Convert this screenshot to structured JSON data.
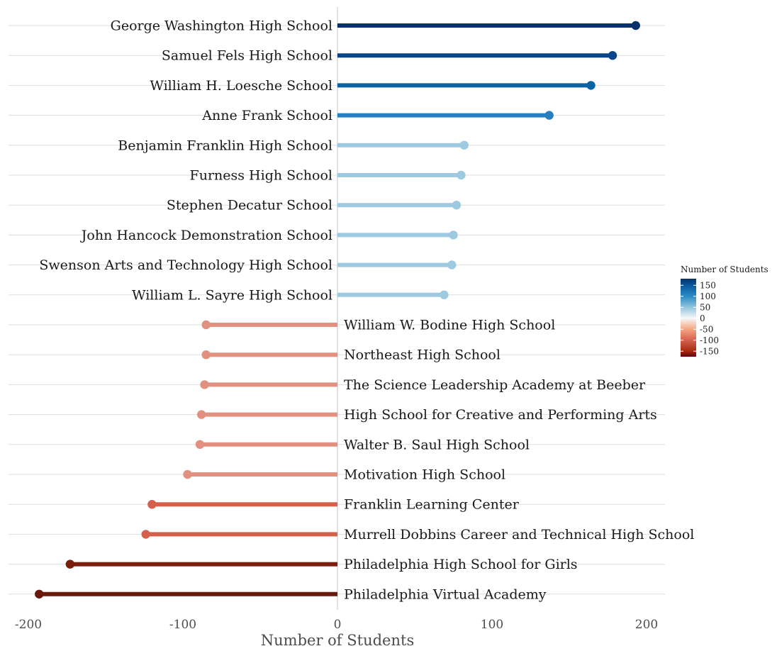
{
  "chart_data": {
    "type": "lollipop",
    "xlabel": "Number of Students",
    "xlim": [
      -205,
      212
    ],
    "x_ticks": [
      -200,
      -100,
      0,
      100,
      200
    ],
    "x_tick_labels": [
      "-200",
      "-100",
      "0",
      "100",
      "200"
    ],
    "grid": true,
    "legend": {
      "title": "Number of Students",
      "position": "right",
      "tick_labels": [
        "150",
        "100",
        "50",
        "0",
        "-50",
        "-100",
        "-150"
      ],
      "tick_values": [
        150,
        100,
        50,
        0,
        -50,
        -100,
        -150
      ],
      "range": [
        -175,
        180
      ]
    },
    "color_stops": [
      {
        "value": -195,
        "color": "#67000d"
      },
      {
        "value": -150,
        "color": "#a52a0f"
      },
      {
        "value": -100,
        "color": "#d6604d"
      },
      {
        "value": -50,
        "color": "#f4a582"
      },
      {
        "value": 0,
        "color": "#f7f7f7"
      },
      {
        "value": 50,
        "color": "#92c5de"
      },
      {
        "value": 100,
        "color": "#2b8cc4"
      },
      {
        "value": 150,
        "color": "#08589e"
      },
      {
        "value": 195,
        "color": "#08306b"
      }
    ],
    "categories": [
      "George Washington High School",
      "Samuel Fels High School",
      "William H. Loesche School",
      "Anne Frank School",
      "Benjamin Franklin High School",
      "Furness High School",
      "Stephen Decatur School",
      "John Hancock Demonstration School",
      "Swenson Arts and Technology High School",
      "William L. Sayre High School",
      "William W. Bodine High School",
      "Northeast High School",
      "The Science Leadership Academy at Beeber",
      "High School for Creative and Performing Arts",
      "Walter B. Saul High School",
      "Motivation High School",
      "Franklin Learning Center",
      "Murrell Dobbins Career and Technical High School",
      "Philadelphia High School for Girls",
      "Philadelphia Virtual Academy"
    ],
    "values": [
      193,
      178,
      164,
      137,
      82,
      80,
      77,
      75,
      74,
      69,
      -85,
      -85,
      -86,
      -88,
      -89,
      -97,
      -120,
      -124,
      -173,
      -193
    ],
    "colors": [
      "#08306b",
      "#08458a",
      "#0a64a4",
      "#2480c0",
      "#9ecae1",
      "#9ecae1",
      "#9ecae1",
      "#9ecae1",
      "#9ecae1",
      "#9ecae1",
      "#e2907f",
      "#e2907f",
      "#e2907f",
      "#e2907f",
      "#e2907f",
      "#e2907f",
      "#d45f4a",
      "#d45f4a",
      "#7a1d0c",
      "#671a0c"
    ]
  }
}
